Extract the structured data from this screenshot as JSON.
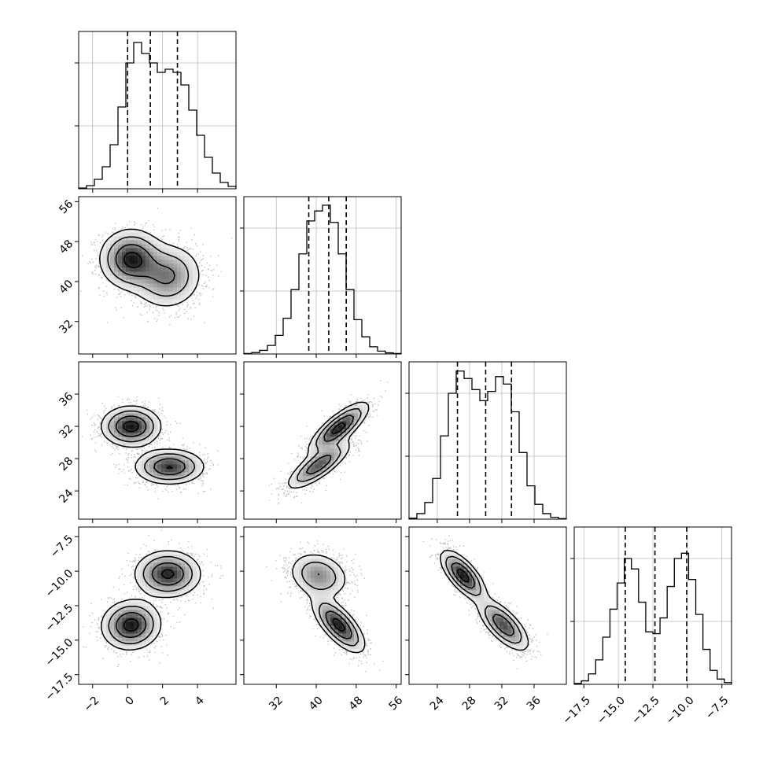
{
  "chart_data": {
    "type": "corner",
    "parameters": [
      {
        "range": [
          -2.8,
          6.2
        ],
        "ticks": [
          -2,
          0,
          2,
          4
        ],
        "tick_labels": [
          "−2",
          "0",
          "2",
          "4"
        ],
        "quantiles": [
          0.0,
          1.3,
          2.85
        ],
        "hist": [
          0.5,
          2,
          6,
          14,
          28,
          52,
          80,
          93,
          86,
          80,
          74,
          76,
          74,
          66,
          50,
          34,
          20,
          10,
          4,
          1.5
        ],
        "hist_max": 100
      },
      {
        "range": [
          25.5,
          57
        ],
        "ticks": [
          32,
          40,
          48,
          56
        ],
        "tick_labels": [
          "32",
          "40",
          "48",
          "56"
        ],
        "quantiles": [
          38.5,
          42.5,
          46.0
        ],
        "hist": [
          0.3,
          1,
          2.5,
          6,
          13,
          25,
          45,
          70,
          93,
          100,
          104,
          92,
          70,
          45,
          24,
          12,
          5,
          2,
          0.8,
          0.3
        ],
        "hist_max": 110
      },
      {
        "range": [
          20.5,
          40
        ],
        "ticks": [
          24,
          28,
          32,
          36
        ],
        "tick_labels": [
          "24",
          "28",
          "32",
          "36"
        ],
        "quantiles": [
          26.5,
          30.0,
          33.2
        ],
        "hist": [
          0.5,
          3,
          9,
          22,
          45,
          68,
          80,
          76,
          70,
          64,
          69,
          77,
          73,
          58,
          36,
          18,
          8,
          3,
          1,
          0.3
        ],
        "hist_max": 85
      },
      {
        "range": [
          -18.2,
          -6.8
        ],
        "ticks": [
          -17.5,
          -15.0,
          -12.5,
          -10.0,
          -7.5
        ],
        "tick_labels": [
          "−17.5",
          "−15.0",
          "−12.5",
          "−10.0",
          "−7.5"
        ],
        "quantiles": [
          -14.5,
          -12.35,
          -10.05
        ],
        "hist": [
          0.5,
          2,
          6,
          14,
          27,
          43,
          58,
          72,
          66,
          47,
          30,
          29,
          38,
          56,
          72,
          75,
          60,
          40,
          20,
          8,
          3,
          1
        ],
        "hist_max": 90
      }
    ],
    "pairs": [
      {
        "x": 0,
        "y": 1,
        "clusters": [
          {
            "mean": [
              0.2,
              44.5
            ],
            "sd": [
              0.9,
              3.0
            ],
            "rho": 0.0,
            "w": 0.55
          },
          {
            "mean": [
              2.3,
              41.0
            ],
            "sd": [
              1.0,
              3.3
            ],
            "rho": 0.05,
            "w": 0.45
          }
        ]
      },
      {
        "x": 0,
        "y": 2,
        "clusters": [
          {
            "mean": [
              0.2,
              32.0
            ],
            "sd": [
              0.85,
              1.25
            ],
            "rho": 0.0,
            "w": 0.52
          },
          {
            "mean": [
              2.4,
              27.0
            ],
            "sd": [
              1.0,
              1.1
            ],
            "rho": 0.0,
            "w": 0.48
          }
        ]
      },
      {
        "x": 0,
        "y": 3,
        "clusters": [
          {
            "mean": [
              2.3,
              -10.2
            ],
            "sd": [
              0.95,
              0.85
            ],
            "rho": 0.0,
            "w": 0.5
          },
          {
            "mean": [
              0.2,
              -13.9
            ],
            "sd": [
              0.85,
              0.9
            ],
            "rho": 0.05,
            "w": 0.5
          }
        ]
      },
      {
        "x": 1,
        "y": 2,
        "clusters": [
          {
            "mean": [
              44.5,
              31.8
            ],
            "sd": [
              3.0,
              1.6
            ],
            "rho": 0.8,
            "w": 0.55
          },
          {
            "mean": [
              40.5,
              27.2
            ],
            "sd": [
              3.2,
              1.5
            ],
            "rho": 0.8,
            "w": 0.45
          }
        ]
      },
      {
        "x": 1,
        "y": 3,
        "clusters": [
          {
            "mean": [
              40.5,
              -10.3
            ],
            "sd": [
              3.0,
              0.85
            ],
            "rho": -0.2,
            "w": 0.45
          },
          {
            "mean": [
              44.5,
              -13.9
            ],
            "sd": [
              2.6,
              1.0
            ],
            "rho": -0.7,
            "w": 0.55
          }
        ]
      },
      {
        "x": 2,
        "y": 3,
        "clusters": [
          {
            "mean": [
              27.2,
              -10.3
            ],
            "sd": [
              1.4,
              0.9
            ],
            "rho": -0.7,
            "w": 0.5
          },
          {
            "mean": [
              32.2,
              -13.9
            ],
            "sd": [
              1.6,
              0.95
            ],
            "rho": -0.7,
            "w": 0.5
          }
        ]
      }
    ]
  }
}
